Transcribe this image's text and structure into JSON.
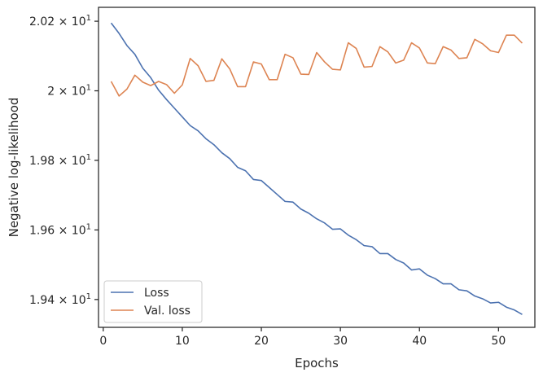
{
  "chart_data": {
    "type": "line",
    "xlabel": "Epochs",
    "ylabel": "Negative log-likelihood",
    "xlim": [
      -0.6,
      54.6
    ],
    "ylim": [
      19.32,
      20.24
    ],
    "x_ticks": [
      0,
      10,
      20,
      30,
      40,
      50
    ],
    "y_ticks": [
      {
        "value": 19.4,
        "mantissa": "1.94",
        "exponent": "1"
      },
      {
        "value": 19.6,
        "mantissa": "1.96",
        "exponent": "1"
      },
      {
        "value": 19.8,
        "mantissa": "1.98",
        "exponent": "1"
      },
      {
        "value": 20.0,
        "mantissa": "2",
        "exponent": "1"
      },
      {
        "value": 20.2,
        "mantissa": "2.02",
        "exponent": "1"
      }
    ],
    "grid": false,
    "legend_position": "lower-left",
    "x": [
      1,
      2,
      3,
      4,
      5,
      6,
      7,
      8,
      9,
      10,
      11,
      12,
      13,
      14,
      15,
      16,
      17,
      18,
      19,
      20,
      21,
      22,
      23,
      24,
      25,
      26,
      27,
      28,
      29,
      30,
      31,
      32,
      33,
      34,
      35,
      36,
      37,
      38,
      39,
      40,
      41,
      42,
      43,
      44,
      45,
      46,
      47,
      48,
      49,
      50,
      51,
      52,
      53
    ],
    "series": [
      {
        "name": "Loss",
        "color": "#4c72b0",
        "values": [
          20.195,
          20.165,
          20.13,
          20.105,
          20.065,
          20.038,
          20.002,
          19.975,
          19.95,
          19.925,
          19.9,
          19.885,
          19.862,
          19.845,
          19.822,
          19.805,
          19.78,
          19.77,
          19.745,
          19.742,
          19.722,
          19.702,
          19.682,
          19.68,
          19.66,
          19.648,
          19.632,
          19.62,
          19.602,
          19.603,
          19.585,
          19.572,
          19.555,
          19.552,
          19.532,
          19.532,
          19.515,
          19.505,
          19.485,
          19.488,
          19.47,
          19.46,
          19.445,
          19.445,
          19.428,
          19.425,
          19.41,
          19.402,
          19.39,
          19.392,
          19.378,
          19.37,
          19.357
        ]
      },
      {
        "name": "Val. loss",
        "color": "#dd8452",
        "values": [
          20.027,
          19.985,
          20.005,
          20.045,
          20.025,
          20.015,
          20.027,
          20.018,
          19.993,
          20.017,
          20.093,
          20.072,
          20.027,
          20.03,
          20.092,
          20.063,
          20.012,
          20.012,
          20.083,
          20.077,
          20.032,
          20.032,
          20.105,
          20.095,
          20.048,
          20.047,
          20.11,
          20.083,
          20.062,
          20.06,
          20.138,
          20.122,
          20.068,
          20.07,
          20.127,
          20.112,
          20.08,
          20.088,
          20.138,
          20.123,
          20.08,
          20.078,
          20.127,
          20.117,
          20.093,
          20.095,
          20.148,
          20.135,
          20.115,
          20.11,
          20.16,
          20.16,
          20.137
        ]
      }
    ]
  }
}
